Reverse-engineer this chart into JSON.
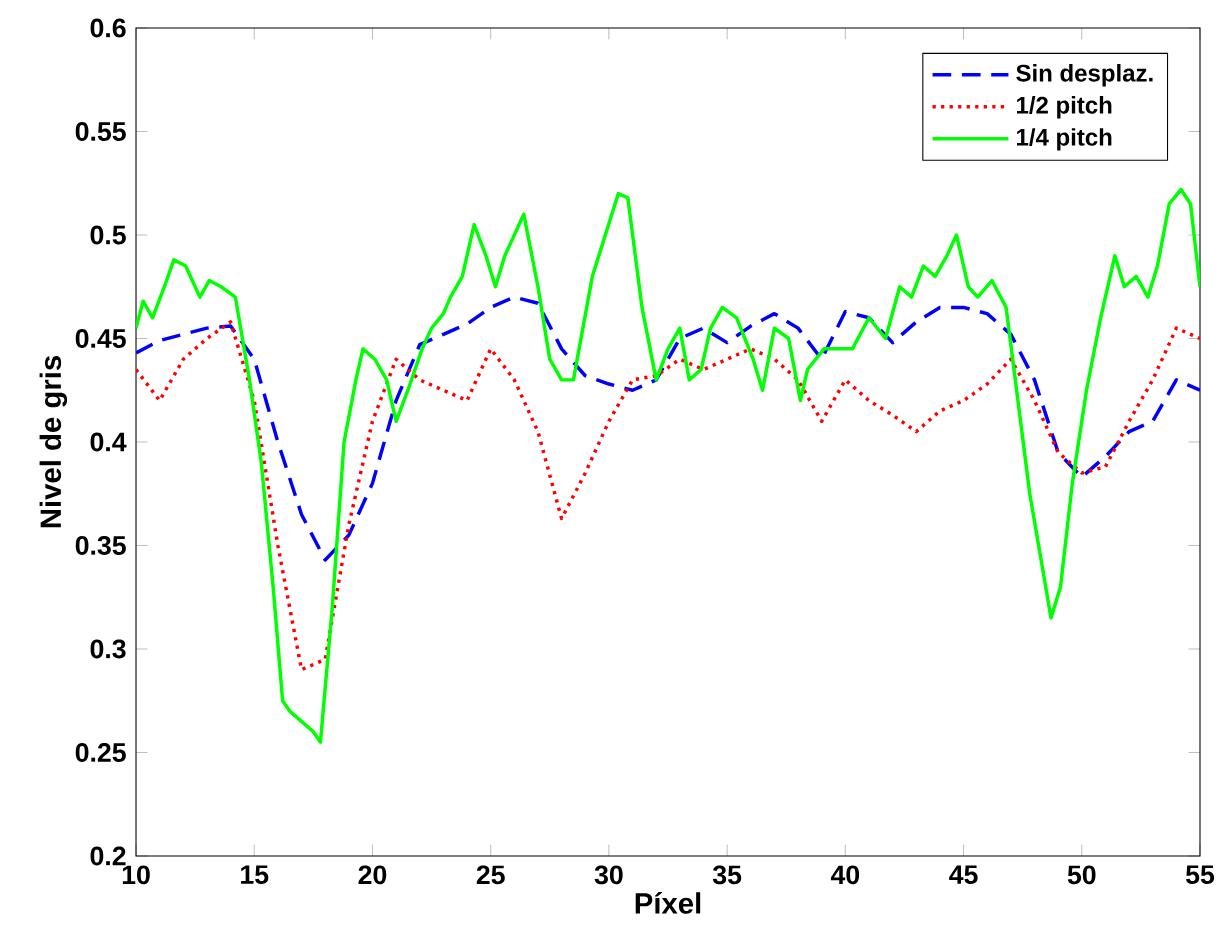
{
  "chart_data": {
    "type": "line",
    "xlabel": "Píxel",
    "ylabel": "Nivel de gris",
    "xlim": [
      10,
      55
    ],
    "ylim": [
      0.2,
      0.6
    ],
    "xticks": [
      10,
      15,
      20,
      25,
      30,
      35,
      40,
      45,
      50,
      55
    ],
    "yticks": [
      0.2,
      0.25,
      0.3,
      0.35,
      0.4,
      0.45,
      0.5,
      0.55,
      0.6
    ],
    "legend": "top right",
    "marker": "none",
    "grid": false,
    "series": [
      {
        "name": "Sin desplaz.",
        "color": "#0000ff",
        "line_style": "dashed",
        "x": [
          10,
          11,
          12,
          13,
          14,
          15,
          16,
          17,
          18,
          19,
          20,
          21,
          22,
          23,
          24,
          25,
          26,
          27,
          28,
          29,
          30,
          31,
          32,
          33,
          34,
          35,
          36,
          37,
          38,
          39,
          40,
          41,
          42,
          43,
          44,
          45,
          46,
          47,
          48,
          49,
          50,
          51,
          52,
          53,
          54,
          55
        ],
        "values": [
          0.443,
          0.449,
          0.452,
          0.455,
          0.456,
          0.44,
          0.4,
          0.365,
          0.343,
          0.355,
          0.38,
          0.42,
          0.447,
          0.452,
          0.457,
          0.465,
          0.47,
          0.467,
          0.445,
          0.432,
          0.428,
          0.425,
          0.43,
          0.45,
          0.455,
          0.448,
          0.456,
          0.462,
          0.455,
          0.44,
          0.463,
          0.46,
          0.448,
          0.458,
          0.465,
          0.465,
          0.462,
          0.452,
          0.43,
          0.395,
          0.383,
          0.393,
          0.405,
          0.41,
          0.43,
          0.425
        ]
      },
      {
        "name": "1/2 pitch",
        "color": "#ff0000",
        "line_style": "dotted",
        "x": [
          10,
          11,
          12,
          13,
          14,
          15,
          16,
          17,
          18,
          19,
          20,
          21,
          22,
          23,
          24,
          25,
          26,
          27,
          28,
          29,
          30,
          31,
          32,
          33,
          34,
          35,
          36,
          37,
          38,
          39,
          40,
          41,
          42,
          43,
          44,
          45,
          46,
          47,
          48,
          49,
          50,
          51,
          52,
          53,
          54,
          55
        ],
        "values": [
          0.435,
          0.42,
          0.44,
          0.45,
          0.458,
          0.42,
          0.35,
          0.29,
          0.295,
          0.36,
          0.41,
          0.44,
          0.43,
          0.425,
          0.42,
          0.445,
          0.43,
          0.405,
          0.363,
          0.385,
          0.41,
          0.43,
          0.432,
          0.44,
          0.435,
          0.44,
          0.445,
          0.44,
          0.43,
          0.41,
          0.43,
          0.42,
          0.413,
          0.405,
          0.415,
          0.42,
          0.428,
          0.44,
          0.42,
          0.395,
          0.385,
          0.388,
          0.41,
          0.43,
          0.455,
          0.45
        ]
      },
      {
        "name": "1/4 pitch",
        "color": "#00ff00",
        "line_style": "solid",
        "x": [
          10,
          10.3,
          10.7,
          11.2,
          11.6,
          12.1,
          12.7,
          13.1,
          13.6,
          14.2,
          14.8,
          15.3,
          15.8,
          16.2,
          16.5,
          17,
          17.5,
          17.8,
          18.3,
          18.8,
          19.3,
          19.6,
          20.1,
          20.6,
          21,
          21.5,
          22.1,
          22.5,
          23,
          23.3,
          23.8,
          24.3,
          24.8,
          25.2,
          25.6,
          26.4,
          27,
          27.5,
          28,
          28.5,
          29.3,
          30.4,
          30.8,
          31.4,
          32,
          32.5,
          33,
          33.4,
          33.9,
          34.3,
          34.8,
          35.4,
          36.1,
          36.5,
          37,
          37.6,
          38.1,
          38.4,
          39.1,
          39.8,
          40.3,
          41,
          41.7,
          42.3,
          42.8,
          43.3,
          43.8,
          44.3,
          44.7,
          45.2,
          45.6,
          46.2,
          46.8,
          47.3,
          47.8,
          48.4,
          48.7,
          49.1,
          49.6,
          50.2,
          50.8,
          51.4,
          51.8,
          52.3,
          52.8,
          53.2,
          53.7,
          54.2,
          54.6,
          55
        ],
        "values": [
          0.455,
          0.468,
          0.46,
          0.475,
          0.488,
          0.485,
          0.47,
          0.478,
          0.475,
          0.47,
          0.43,
          0.39,
          0.33,
          0.275,
          0.27,
          0.265,
          0.26,
          0.255,
          0.32,
          0.4,
          0.43,
          0.445,
          0.44,
          0.43,
          0.41,
          0.425,
          0.445,
          0.455,
          0.462,
          0.47,
          0.48,
          0.505,
          0.49,
          0.475,
          0.49,
          0.51,
          0.475,
          0.44,
          0.43,
          0.43,
          0.48,
          0.52,
          0.518,
          0.465,
          0.43,
          0.445,
          0.455,
          0.43,
          0.435,
          0.455,
          0.465,
          0.46,
          0.44,
          0.425,
          0.455,
          0.45,
          0.42,
          0.435,
          0.445,
          0.445,
          0.445,
          0.46,
          0.45,
          0.475,
          0.47,
          0.485,
          0.48,
          0.49,
          0.5,
          0.475,
          0.47,
          0.478,
          0.465,
          0.42,
          0.375,
          0.335,
          0.315,
          0.33,
          0.38,
          0.425,
          0.46,
          0.49,
          0.475,
          0.48,
          0.47,
          0.485,
          0.515,
          0.522,
          0.515,
          0.475
        ]
      }
    ]
  }
}
